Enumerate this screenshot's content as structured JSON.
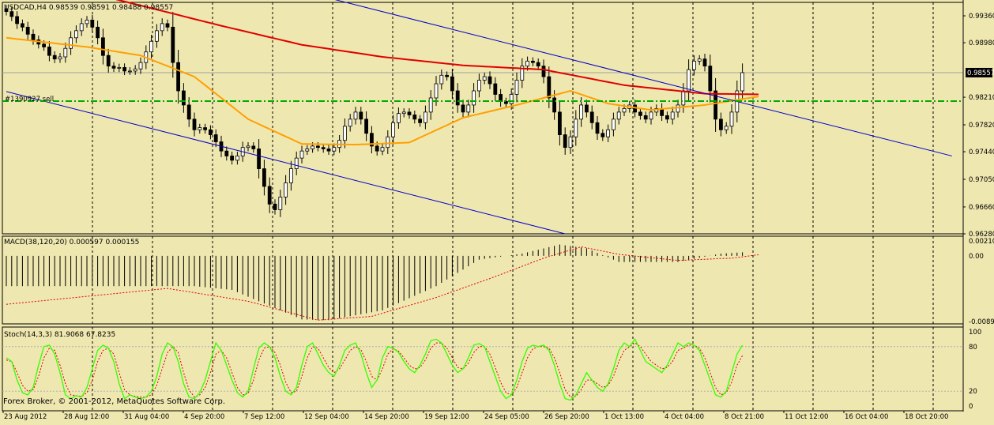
{
  "colors": {
    "background": "#efe7b0",
    "grid": "#000000",
    "candles": "#000000",
    "ma_slow": "#e00000",
    "ma_fast": "#ffa000",
    "channel": "#0000cc",
    "order_line": "#00aa00",
    "macd_hist": "#000000",
    "macd_signal": "#e00000",
    "stoch_main": "#33ff00",
    "stoch_signal": "#e00000",
    "price_marker_bg": "#000000",
    "price_marker_text": "#ffffff"
  },
  "main_panel": {
    "title": "USDCAD,H4  0.98539 0.98591 0.98488 0.98557",
    "order_label": "#1390927 sell",
    "current_price_label": "0.98557",
    "price_axis_labels": [
      "0.99360",
      "0.98980",
      "0.98557",
      "0.98210",
      "0.97820",
      "0.97440",
      "0.97050",
      "0.96660",
      "0.96280"
    ]
  },
  "macd_panel": {
    "title": "MACD(38,120,20) 0.000597 0.000155",
    "axis_labels": [
      "0.00210",
      "0.00",
      "-0.00899"
    ]
  },
  "stoch_panel": {
    "title": "Stoch(14,3,3) 81.9068 67.8235",
    "axis_labels": [
      "100",
      "80",
      "20",
      "0"
    ]
  },
  "footer": {
    "copyright": "Forex Broker, © 2001-2012, MetaQuotes Software Corp."
  },
  "time_axis": {
    "labels": [
      "23 Aug 2012",
      "28 Aug 12:00",
      "31 Aug 04:00",
      "4 Sep 20:00",
      "7 Sep 12:00",
      "12 Sep 04:00",
      "14 Sep 20:00",
      "19 Sep 12:00",
      "24 Sep 05:00",
      "26 Sep 20:00",
      "1 Oct 13:00",
      "4 Oct 04:00",
      "8 Oct 21:00",
      "11 Oct 12:00",
      "16 Oct 04:00",
      "18 Oct 20:00"
    ]
  },
  "chart_data": [
    {
      "type": "candlestick",
      "symbol": "USDCAD",
      "timeframe": "H4",
      "ylim": [
        0.9628,
        0.9955
      ],
      "current": {
        "open": 0.98539,
        "high": 0.98591,
        "low": 0.98488,
        "close": 0.98557
      },
      "order_line": {
        "label": "#1390927 sell",
        "price": 0.98155
      },
      "close_path": [
        0.9942,
        0.9935,
        0.9925,
        0.992,
        0.991,
        0.9902,
        0.9896,
        0.9892,
        0.988,
        0.9875,
        0.9878,
        0.989,
        0.9905,
        0.9915,
        0.9925,
        0.993,
        0.992,
        0.9905,
        0.988,
        0.9865,
        0.9862,
        0.9863,
        0.9858,
        0.9858,
        0.9861,
        0.987,
        0.9885,
        0.99,
        0.9915,
        0.9925,
        0.992,
        0.987,
        0.983,
        0.981,
        0.979,
        0.9775,
        0.9778,
        0.9775,
        0.9768,
        0.9758,
        0.9745,
        0.9738,
        0.9732,
        0.9738,
        0.975,
        0.9752,
        0.9748,
        0.972,
        0.9695,
        0.967,
        0.9662,
        0.968,
        0.97,
        0.972,
        0.9735,
        0.9745,
        0.9748,
        0.9752,
        0.975,
        0.9748,
        0.9745,
        0.975,
        0.976,
        0.978,
        0.979,
        0.98,
        0.979,
        0.977,
        0.9752,
        0.9745,
        0.975,
        0.9765,
        0.9785,
        0.9798,
        0.98,
        0.9796,
        0.979,
        0.9785,
        0.98,
        0.982,
        0.984,
        0.9852,
        0.985,
        0.983,
        0.981,
        0.98,
        0.981,
        0.983,
        0.9845,
        0.985,
        0.984,
        0.9825,
        0.9815,
        0.9812,
        0.9825,
        0.9845,
        0.9865,
        0.9872,
        0.987,
        0.9865,
        0.985,
        0.982,
        0.98,
        0.9768,
        0.975,
        0.9765,
        0.979,
        0.981,
        0.98,
        0.9785,
        0.977,
        0.9765,
        0.9775,
        0.979,
        0.98,
        0.9805,
        0.981,
        0.98,
        0.9795,
        0.979,
        0.98,
        0.9805,
        0.9795,
        0.979,
        0.98,
        0.981,
        0.983,
        0.986,
        0.9872,
        0.9875,
        0.9865,
        0.983,
        0.979,
        0.9775,
        0.978,
        0.98,
        0.983,
        0.98557
      ],
      "ma_slow": [
        {
          "bar": 0,
          "value": 0.9975
        },
        {
          "bar": 20,
          "value": 0.996
        },
        {
          "bar": 40,
          "value": 0.9922
        },
        {
          "bar": 55,
          "value": 0.9895
        },
        {
          "bar": 70,
          "value": 0.9878
        },
        {
          "bar": 85,
          "value": 0.9866
        },
        {
          "bar": 100,
          "value": 0.986
        },
        {
          "bar": 115,
          "value": 0.9838
        },
        {
          "bar": 130,
          "value": 0.9826
        },
        {
          "bar": 140,
          "value": 0.9825
        }
      ],
      "ma_fast": [
        {
          "bar": 0,
          "value": 0.9905
        },
        {
          "bar": 15,
          "value": 0.9892
        },
        {
          "bar": 25,
          "value": 0.988
        },
        {
          "bar": 35,
          "value": 0.985
        },
        {
          "bar": 45,
          "value": 0.979
        },
        {
          "bar": 55,
          "value": 0.9755
        },
        {
          "bar": 65,
          "value": 0.9754
        },
        {
          "bar": 75,
          "value": 0.9757
        },
        {
          "bar": 85,
          "value": 0.9792
        },
        {
          "bar": 95,
          "value": 0.981
        },
        {
          "bar": 105,
          "value": 0.983
        },
        {
          "bar": 112,
          "value": 0.9812
        },
        {
          "bar": 120,
          "value": 0.9803
        },
        {
          "bar": 130,
          "value": 0.981
        },
        {
          "bar": 140,
          "value": 0.9822
        }
      ],
      "channel_upper": {
        "from": {
          "bar": 58,
          "value": 0.9965
        },
        "to": {
          "bar": 176,
          "value": 0.9738
        }
      },
      "channel_lower": {
        "from": {
          "bar": 0,
          "value": 0.9829
        },
        "to": {
          "bar": 104,
          "value": 0.9628
        }
      }
    },
    {
      "type": "histogram+line",
      "indicator": "MACD(38,120,20)",
      "main": 0.000597,
      "signal": 0.000155,
      "ylim": [
        -0.00899,
        0.0026
      ],
      "hist_path": [
        {
          "bar": 0,
          "value": -0.004
        },
        {
          "bar": 35,
          "value": -0.004
        },
        {
          "bar": 42,
          "value": -0.0045
        },
        {
          "bar": 55,
          "value": -0.0084
        },
        {
          "bar": 60,
          "value": -0.0085
        },
        {
          "bar": 70,
          "value": -0.0072
        },
        {
          "bar": 80,
          "value": -0.004
        },
        {
          "bar": 88,
          "value": -0.0005
        },
        {
          "bar": 96,
          "value": 0.0003
        },
        {
          "bar": 103,
          "value": 0.0015
        },
        {
          "bar": 108,
          "value": 0.001
        },
        {
          "bar": 114,
          "value": -0.0008
        },
        {
          "bar": 125,
          "value": -0.0008
        },
        {
          "bar": 133,
          "value": 0.0003
        },
        {
          "bar": 140,
          "value": 0.0006
        }
      ],
      "signal_path": [
        {
          "bar": 0,
          "value": -0.0064
        },
        {
          "bar": 30,
          "value": -0.0043
        },
        {
          "bar": 45,
          "value": -0.006
        },
        {
          "bar": 58,
          "value": -0.0085
        },
        {
          "bar": 68,
          "value": -0.008
        },
        {
          "bar": 80,
          "value": -0.0055
        },
        {
          "bar": 90,
          "value": -0.003
        },
        {
          "bar": 100,
          "value": -0.0003
        },
        {
          "bar": 107,
          "value": 0.0012
        },
        {
          "bar": 114,
          "value": 0.0002
        },
        {
          "bar": 125,
          "value": -0.0006
        },
        {
          "bar": 135,
          "value": -0.0003
        },
        {
          "bar": 140,
          "value": 0.00015
        }
      ]
    },
    {
      "type": "line",
      "indicator": "Stoch(14,3,3)",
      "main": 81.9068,
      "signal": 67.8235,
      "ylim": [
        0,
        100
      ],
      "levels": [
        20,
        80
      ],
      "main_path": [
        65,
        60,
        35,
        18,
        15,
        25,
        55,
        80,
        82,
        70,
        45,
        15,
        10,
        14,
        12,
        25,
        50,
        75,
        82,
        78,
        60,
        30,
        10,
        15,
        12,
        10,
        12,
        20,
        40,
        70,
        85,
        80,
        60,
        30,
        12,
        10,
        18,
        35,
        60,
        85,
        75,
        55,
        35,
        18,
        12,
        20,
        50,
        78,
        85,
        80,
        65,
        40,
        20,
        15,
        25,
        55,
        80,
        85,
        70,
        55,
        45,
        40,
        55,
        75,
        82,
        85,
        70,
        45,
        25,
        35,
        65,
        80,
        78,
        72,
        60,
        50,
        45,
        55,
        70,
        88,
        90,
        85,
        70,
        55,
        45,
        50,
        65,
        82,
        84,
        80,
        60,
        40,
        20,
        10,
        15,
        35,
        60,
        78,
        82,
        80,
        82,
        75,
        55,
        30,
        10,
        8,
        15,
        30,
        45,
        35,
        25,
        20,
        30,
        50,
        75,
        85,
        80,
        90,
        75,
        60,
        55,
        50,
        45,
        55,
        70,
        85,
        80,
        85,
        82,
        75,
        55,
        35,
        15,
        12,
        20,
        45,
        70,
        82
      ],
      "signal_path": [
        62,
        60,
        45,
        28,
        20,
        22,
        40,
        65,
        78,
        75,
        55,
        30,
        15,
        14,
        13,
        18,
        35,
        60,
        75,
        78,
        70,
        45,
        22,
        15,
        13,
        12,
        12,
        15,
        28,
        50,
        72,
        80,
        72,
        45,
        22,
        12,
        15,
        25,
        45,
        70,
        75,
        65,
        45,
        25,
        15,
        17,
        35,
        62,
        78,
        80,
        72,
        55,
        32,
        18,
        20,
        40,
        65,
        80,
        78,
        65,
        52,
        45,
        50,
        62,
        75,
        80,
        76,
        60,
        40,
        35,
        50,
        70,
        77,
        74,
        65,
        55,
        50,
        52,
        62,
        78,
        85,
        85,
        78,
        65,
        52,
        50,
        58,
        72,
        80,
        80,
        70,
        52,
        32,
        18,
        15,
        25,
        45,
        65,
        77,
        80,
        80,
        78,
        65,
        45,
        22,
        12,
        13,
        22,
        35,
        35,
        30,
        25,
        28,
        40,
        60,
        75,
        80,
        85,
        80,
        70,
        60,
        55,
        50,
        52,
        60,
        75,
        78,
        82,
        82,
        78,
        65,
        45,
        25,
        15,
        18,
        32,
        55,
        67.8235
      ]
    }
  ]
}
